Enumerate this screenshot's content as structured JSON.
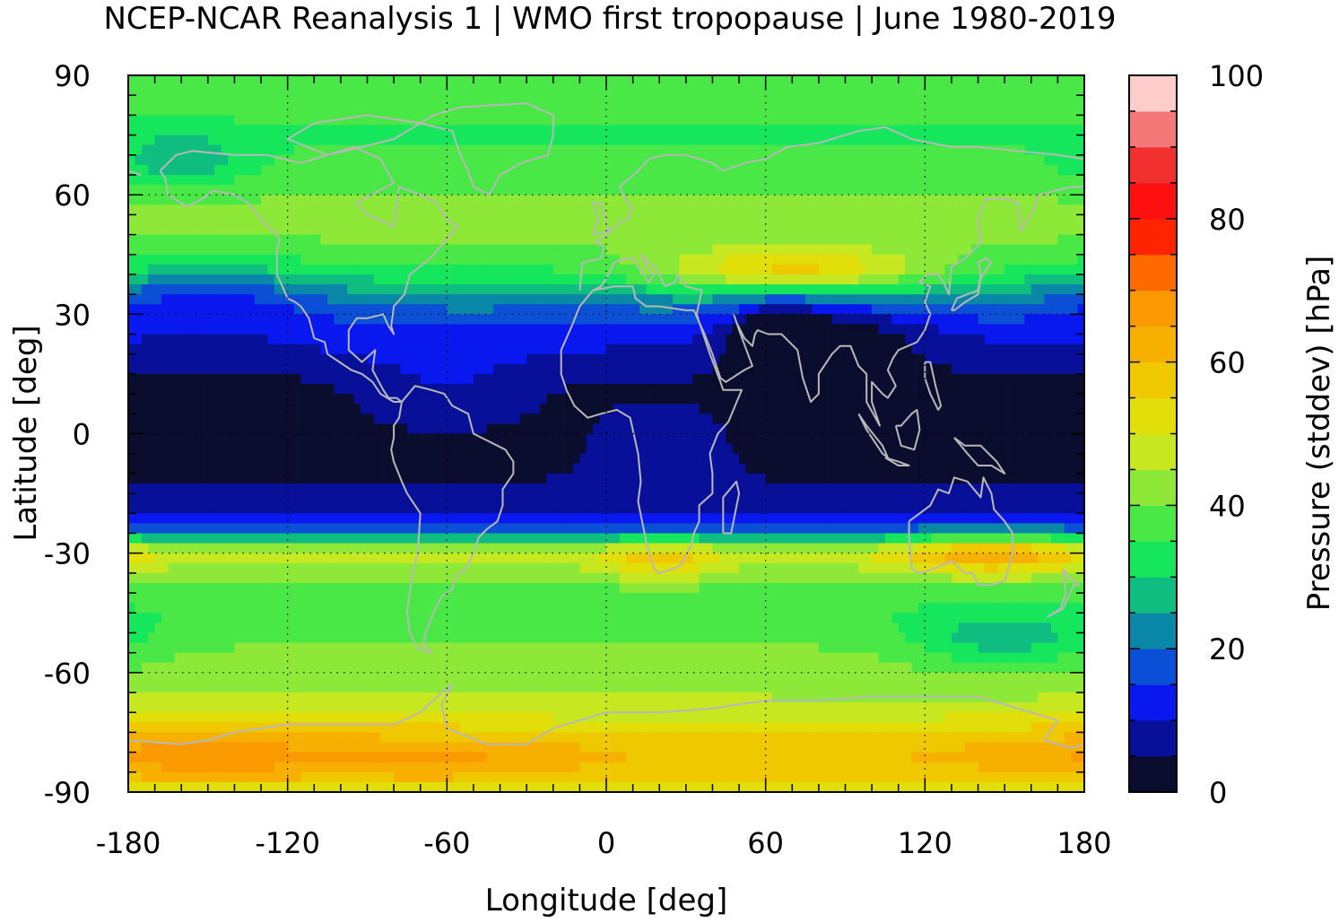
{
  "chart_data": {
    "type": "heatmap",
    "title": "NCEP-NCAR Reanalysis 1 | WMO first tropopause | June 1980-2019",
    "xlabel": "Longitude [deg]",
    "ylabel": "Latitude [deg]",
    "xlim": [
      -180,
      180
    ],
    "ylim": [
      -90,
      90
    ],
    "x_ticks": [
      -180,
      -120,
      -60,
      0,
      60,
      120,
      180
    ],
    "y_ticks": [
      90,
      60,
      30,
      0,
      -30,
      -60,
      -90
    ],
    "x_tick_labels": [
      "-180",
      "-120",
      "-60",
      "0",
      "60",
      "120",
      "180"
    ],
    "y_tick_labels": [
      "90",
      "60",
      "30",
      "0",
      "-30",
      "-60",
      "-90"
    ],
    "grid": "dotted at tick positions",
    "colorbar": {
      "label": "Pressure (stddev) [hPa]",
      "range": [
        0,
        100
      ],
      "ticks": [
        0,
        20,
        40,
        60,
        80,
        100
      ],
      "tick_labels": [
        "0",
        "20",
        "40",
        "60",
        "80",
        "100"
      ],
      "step": 5,
      "colors": [
        "#0b0d2e",
        "#08109a",
        "#0a18f0",
        "#0a4fd6",
        "#0a86a6",
        "#0fbd80",
        "#16e65c",
        "#4ae846",
        "#8ee838",
        "#c7e820",
        "#e2de0a",
        "#f0c800",
        "#f7b000",
        "#fb9900",
        "#ff6a00",
        "#ff2400",
        "#ff1010",
        "#f23030",
        "#f57878",
        "#ffcccc"
      ]
    },
    "zonal_profile": {
      "latitude": [
        -90,
        -85,
        -80,
        -75,
        -70,
        -65,
        -60,
        -55,
        -50,
        -45,
        -40,
        -35,
        -30,
        -25,
        -20,
        -15,
        -10,
        -5,
        0,
        5,
        10,
        15,
        20,
        25,
        30,
        35,
        40,
        45,
        50,
        55,
        60,
        65,
        70,
        75,
        80,
        85,
        90
      ],
      "stddev_hpa": [
        48,
        58,
        60,
        55,
        48,
        44,
        42,
        41,
        38,
        36,
        37,
        42,
        48,
        20,
        8,
        6,
        4,
        3,
        3,
        3,
        3,
        5,
        9,
        12,
        18,
        25,
        33,
        38,
        41,
        42,
        40,
        38,
        36,
        34,
        36,
        38,
        40
      ]
    },
    "overlay": "coastlines (gray)"
  }
}
